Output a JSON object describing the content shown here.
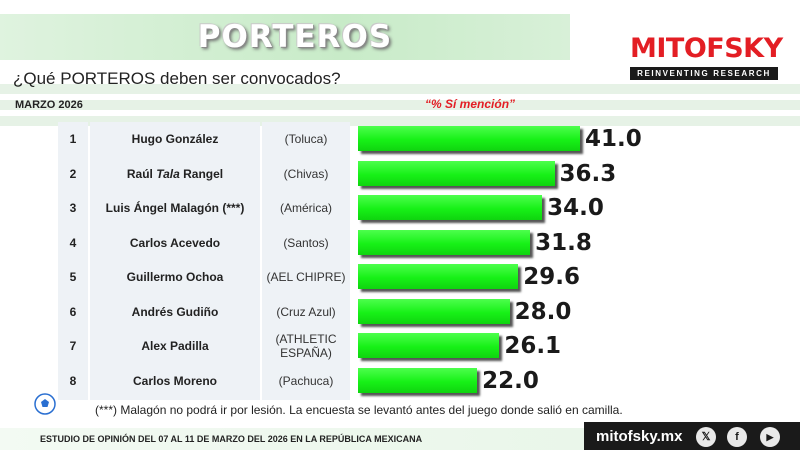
{
  "header": {
    "title": "PORTEROS",
    "question": "¿Qué PORTEROS deben ser convocados?",
    "date": "MARZO 2026",
    "measure_label": "“% Sí mención”"
  },
  "logo": {
    "name": "MITOFSKY",
    "tagline": "REINVENTING RESEARCH"
  },
  "chart_data": {
    "type": "bar",
    "orientation": "horizontal",
    "title": "PORTEROS",
    "value_label": "% Sí mención",
    "xlim": [
      0,
      41.0
    ],
    "rows": [
      {
        "rank": "1",
        "name": "Hugo González",
        "club": "(Toluca)",
        "value": 41.0
      },
      {
        "rank": "2",
        "name": "Raúl Tala Rangel",
        "club": "(Chivas)",
        "value": 36.3
      },
      {
        "rank": "3",
        "name": "Luis Ángel Malagón (***)",
        "club": "(América)",
        "value": 34.0
      },
      {
        "rank": "4",
        "name": "Carlos Acevedo",
        "club": "(Santos)",
        "value": 31.8
      },
      {
        "rank": "5",
        "name": "Guillermo Ochoa",
        "club": "(AEL CHIPRE)",
        "value": 29.6
      },
      {
        "rank": "6",
        "name": "Andrés Gudiño",
        "club": "(Cruz Azul)",
        "value": 28.0
      },
      {
        "rank": "7",
        "name": "Alex Padilla",
        "club": "(ATHLETIC ESPAÑA)",
        "value": 26.1
      },
      {
        "rank": "8",
        "name": "Carlos Moreno",
        "club": "(Pachuca)",
        "value": 22.0
      }
    ],
    "bar_color": "#17f117"
  },
  "footnote": "(***) Malagón no podrá ir por lesión. La encuesta se levantó antes del juego donde salió en camilla.",
  "footer": {
    "study": "ESTUDIO DE OPINIÓN DEL 07 AL 11 DE MARZO DEL 2026 EN LA REPÚBLICA MEXICANA",
    "website": "mitofsky.mx",
    "social": [
      {
        "icon": "x-icon",
        "glyph": "𝕏"
      },
      {
        "icon": "facebook-icon",
        "glyph": "f"
      },
      {
        "icon": "youtube-icon",
        "glyph": "▶"
      }
    ]
  },
  "colors": {
    "accent_red": "#e31e24",
    "bar_green": "#17f117",
    "title_green": "#c8ebc8"
  }
}
